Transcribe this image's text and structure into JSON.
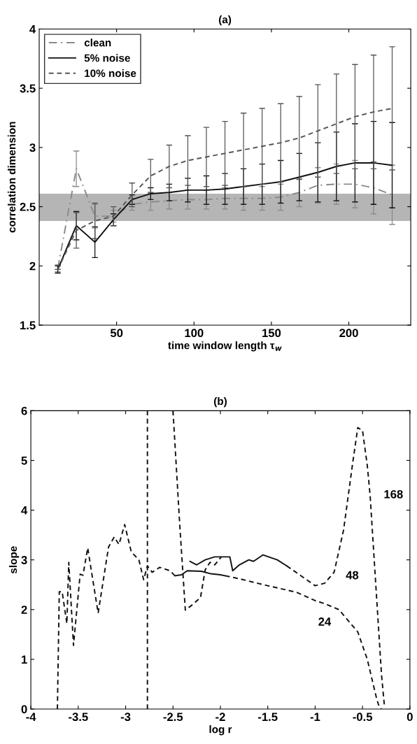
{
  "chart_data": [
    {
      "type": "line",
      "title": "(a)",
      "xlabel": "time window length τ$_{w}$",
      "ylabel": "correlation dimension",
      "x": [
        12,
        24,
        36,
        48,
        60,
        72,
        84,
        96,
        108,
        120,
        132,
        144,
        156,
        168,
        180,
        192,
        204,
        216,
        228
      ],
      "series": [
        {
          "name": "clean",
          "color": "#8a8a8a",
          "line_style": "dashdot",
          "values": [
            1.98,
            2.82,
            2.42,
            2.42,
            2.52,
            2.54,
            2.55,
            2.56,
            2.56,
            2.57,
            2.57,
            2.57,
            2.58,
            2.62,
            2.68,
            2.69,
            2.69,
            2.66,
            2.6
          ],
          "errors": [
            0.03,
            0.15,
            0.1,
            0.05,
            0.05,
            0.07,
            0.07,
            0.08,
            0.08,
            0.09,
            0.1,
            0.1,
            0.11,
            0.12,
            0.15,
            0.17,
            0.2,
            0.22,
            0.25
          ]
        },
        {
          "name": "5% noise",
          "color": "#111111",
          "line_style": "solid",
          "values": [
            1.97,
            2.34,
            2.2,
            2.39,
            2.56,
            2.61,
            2.62,
            2.64,
            2.64,
            2.65,
            2.67,
            2.69,
            2.71,
            2.75,
            2.79,
            2.84,
            2.87,
            2.87,
            2.85
          ],
          "errors": [
            0.03,
            0.12,
            0.13,
            0.05,
            0.04,
            0.05,
            0.07,
            0.1,
            0.12,
            0.13,
            0.15,
            0.17,
            0.18,
            0.2,
            0.25,
            0.29,
            0.33,
            0.35,
            0.36
          ]
        },
        {
          "name": "10% noise",
          "color": "#555555",
          "line_style": "dashed",
          "values": [
            1.97,
            2.3,
            2.38,
            2.42,
            2.6,
            2.76,
            2.84,
            2.89,
            2.92,
            2.95,
            2.98,
            3.01,
            3.04,
            3.08,
            3.14,
            3.2,
            3.26,
            3.3,
            3.33
          ],
          "errors": [
            null,
            0.15,
            0.15,
            0.08,
            0.1,
            0.14,
            0.18,
            0.21,
            0.25,
            0.27,
            0.31,
            0.32,
            0.33,
            0.35,
            0.39,
            0.42,
            0.44,
            0.48,
            0.52
          ]
        }
      ],
      "bands": [
        {
          "axis": "y",
          "from": 2.38,
          "to": 2.61,
          "color": "#b5b5b5"
        }
      ],
      "xlim": [
        0,
        240
      ],
      "xticks": [
        50,
        100,
        150,
        200
      ],
      "ylim": [
        1.5,
        4
      ],
      "yticks": [
        1.5,
        2,
        2.5,
        3,
        3.5,
        4
      ],
      "legend": "top left",
      "grid": false
    },
    {
      "type": "line",
      "title": "(b)",
      "xlabel": "log r",
      "ylabel": "slope",
      "series": [
        {
          "color": "#111111",
          "line_style": "dashed",
          "x": [
            -3.72,
            -3.7,
            -3.67,
            -3.62,
            -3.6,
            -3.55,
            -3.48,
            -3.45,
            -3.4,
            -3.29,
            -3.18,
            -3.12,
            -3.07,
            -3.01,
            -2.94,
            -2.86,
            -2.81,
            -2.77,
            -2.72,
            -2.64,
            -2.53,
            -2.48
          ],
          "values": [
            0,
            2.36,
            2.36,
            1.72,
            2.95,
            1.28,
            2.71,
            2.69,
            3.24,
            1.93,
            3.26,
            3.46,
            3.31,
            3.71,
            3.16,
            3.0,
            2.6,
            2.88,
            2.75,
            2.85,
            2.78,
            2.68
          ]
        },
        {
          "color": "#111111",
          "line_style": "solid",
          "x": [
            -2.48,
            -2.41,
            -2.35,
            -2.2,
            -2.1,
            -2.0,
            -1.95
          ],
          "values": [
            2.68,
            2.7,
            2.78,
            2.77,
            2.72,
            2.7,
            2.68
          ]
        },
        {
          "color": "#111111",
          "line_style": "dashed",
          "x": [
            -1.95,
            -1.8,
            -1.5,
            -1.2,
            -1.0,
            -0.9,
            -0.75,
            -0.55,
            -0.45,
            -0.35,
            -0.33,
            -0.3
          ],
          "values": [
            2.68,
            2.62,
            2.48,
            2.35,
            2.18,
            2.12,
            2.0,
            1.55,
            1.0,
            0.2,
            0.08,
            0
          ]
        },
        {
          "color": "#111111",
          "line_style": "dashed",
          "x": [
            -2.77,
            -2.77
          ],
          "values": [
            0,
            6
          ]
        },
        {
          "color": "#111111",
          "line_style": "dashed",
          "x": [
            -2.5,
            -2.43,
            -2.37,
            -2.3,
            -2.21,
            -2.16,
            -2.11,
            -2.06,
            -1.99
          ],
          "values": [
            6,
            3.74,
            1.99,
            2.09,
            2.24,
            2.8,
            2.95,
            2.9,
            3.06
          ]
        },
        {
          "color": "#111111",
          "line_style": "solid",
          "x": [
            -2.32,
            -2.25,
            -2.16,
            -2.06,
            -2.0,
            -1.9,
            -1.87,
            -1.8,
            -1.7,
            -1.65,
            -1.55,
            -1.4,
            -1.3
          ],
          "values": [
            2.97,
            2.9,
            3.0,
            3.06,
            3.06,
            3.06,
            2.78,
            2.9,
            3.0,
            2.97,
            3.1,
            3.0,
            2.88
          ]
        },
        {
          "color": "#111111",
          "line_style": "dashed",
          "x": [
            -1.3,
            -1.0,
            -0.9,
            -0.8,
            -0.7,
            -0.6,
            -0.55,
            -0.5,
            -0.45,
            -0.42,
            -0.4,
            -0.35,
            -0.3,
            -0.27
          ],
          "values": [
            2.88,
            2.48,
            2.53,
            2.75,
            3.6,
            5.0,
            5.66,
            5.6,
            4.9,
            4.3,
            3.7,
            2.2,
            0.7,
            0.08
          ]
        }
      ],
      "annotations": [
        {
          "text": "168",
          "x": -0.42,
          "y": 4.3
        },
        {
          "text": "48",
          "x": -0.8,
          "y": 2.75
        },
        {
          "text": "24",
          "x": -0.9,
          "y": 2.12
        }
      ],
      "xlim": [
        -4,
        0
      ],
      "xticks": [
        -4,
        -3.5,
        -3,
        -2.5,
        -2,
        -1.5,
        -1,
        -0.5,
        0
      ],
      "ylim": [
        0,
        6
      ],
      "yticks": [
        0,
        1,
        2,
        3,
        4,
        5,
        6
      ],
      "grid": false
    }
  ]
}
